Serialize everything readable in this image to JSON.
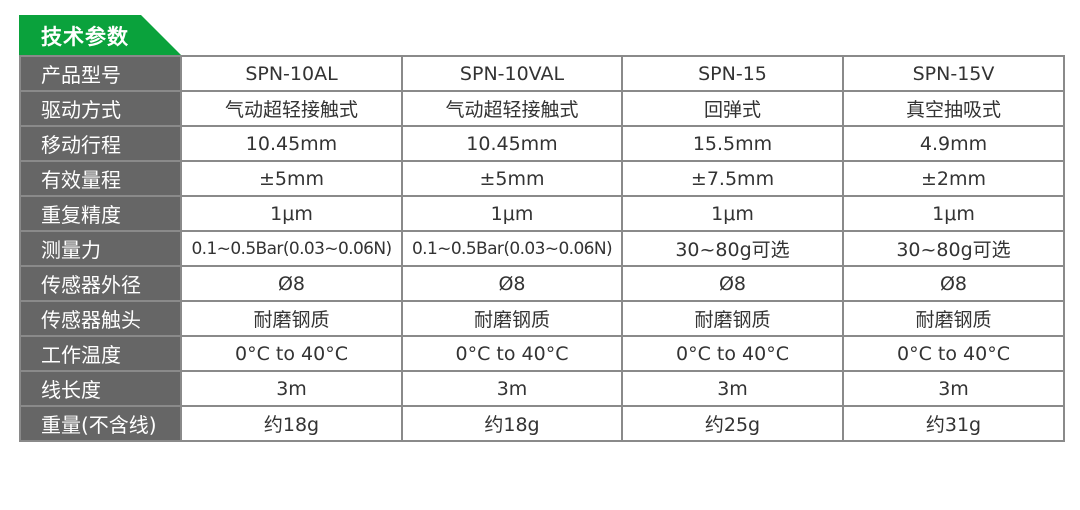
{
  "header": {
    "title": "技术参数",
    "accent_color": "#0aa23c"
  },
  "table": {
    "rows": [
      {
        "label": "产品型号",
        "values": [
          "SPN-10AL",
          "SPN-10VAL",
          "SPN-15",
          "SPN-15V"
        ]
      },
      {
        "label": "驱动方式",
        "values": [
          "气动超轻接触式",
          "气动超轻接触式",
          "回弹式",
          "真空抽吸式"
        ]
      },
      {
        "label": "移动行程",
        "values": [
          "10.45mm",
          "10.45mm",
          "15.5mm",
          "4.9mm"
        ]
      },
      {
        "label": "有效量程",
        "values": [
          "±5mm",
          "±5mm",
          "±7.5mm",
          "±2mm"
        ]
      },
      {
        "label": "重复精度",
        "values": [
          "1μm",
          "1μm",
          "1μm",
          "1μm"
        ]
      },
      {
        "label": "测量力",
        "values": [
          "0.1~0.5Bar(0.03~0.06N)",
          "0.1~0.5Bar(0.03~0.06N)",
          "30~80g可选",
          "30~80g可选"
        ]
      },
      {
        "label": "传感器外径",
        "values": [
          "Ø8",
          "Ø8",
          "Ø8",
          "Ø8"
        ]
      },
      {
        "label": "传感器触头",
        "values": [
          "耐磨钢质",
          "耐磨钢质",
          "耐磨钢质",
          "耐磨钢质"
        ]
      },
      {
        "label": "工作温度",
        "values": [
          "0°C to 40°C",
          "0°C to 40°C",
          "0°C to 40°C",
          "0°C to 40°C"
        ]
      },
      {
        "label": "线长度",
        "values": [
          "3m",
          "3m",
          "3m",
          "3m"
        ]
      },
      {
        "label": "重量(不含线)",
        "values": [
          "约18g",
          "约18g",
          "约25g",
          "约31g"
        ]
      }
    ]
  }
}
